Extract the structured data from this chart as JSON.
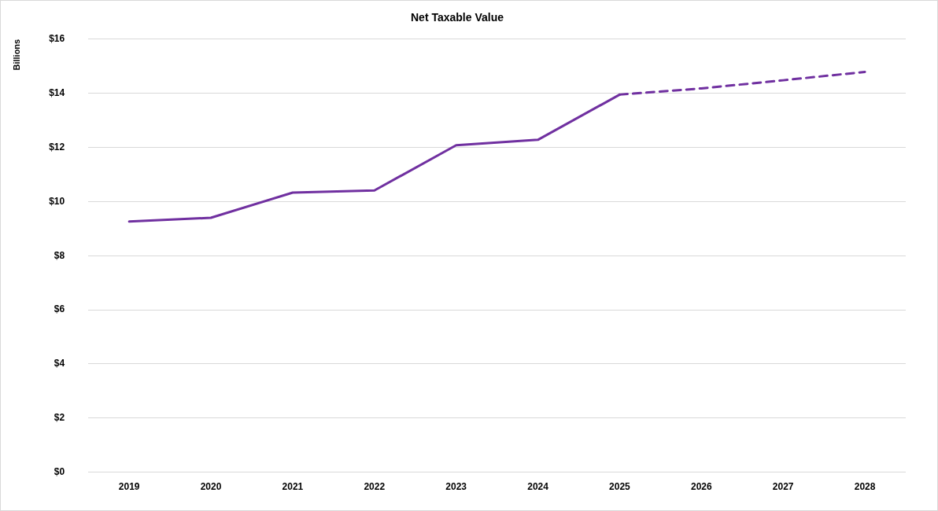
{
  "chart_data": {
    "type": "line",
    "title": "Net Taxable Value",
    "ylabel": "Billions",
    "categories": [
      "2019",
      "2020",
      "2021",
      "2022",
      "2023",
      "2024",
      "2025",
      "2026",
      "2027",
      "2028"
    ],
    "series": [
      {
        "color": "#7030a0",
        "line_style": "solid",
        "values": [
          9.26,
          9.4,
          10.33,
          10.41,
          12.08,
          12.28,
          13.95,
          null,
          null,
          null
        ]
      },
      {
        "color": "#7030a0",
        "line_style": "dashed",
        "values": [
          null,
          null,
          null,
          null,
          null,
          null,
          13.95,
          14.18,
          14.48,
          14.79
        ]
      }
    ],
    "ylim": [
      0,
      16
    ],
    "yticks": [
      {
        "value": 0,
        "label": "$0"
      },
      {
        "value": 2,
        "label": "$2"
      },
      {
        "value": 4,
        "label": "$4"
      },
      {
        "value": 6,
        "label": "$6"
      },
      {
        "value": 8,
        "label": "$8"
      },
      {
        "value": 10,
        "label": "$10"
      },
      {
        "value": 12,
        "label": "$12"
      },
      {
        "value": 14,
        "label": "$14"
      },
      {
        "value": 16,
        "label": "$16"
      }
    ],
    "grid": "y",
    "legend": false,
    "marker": "none"
  }
}
